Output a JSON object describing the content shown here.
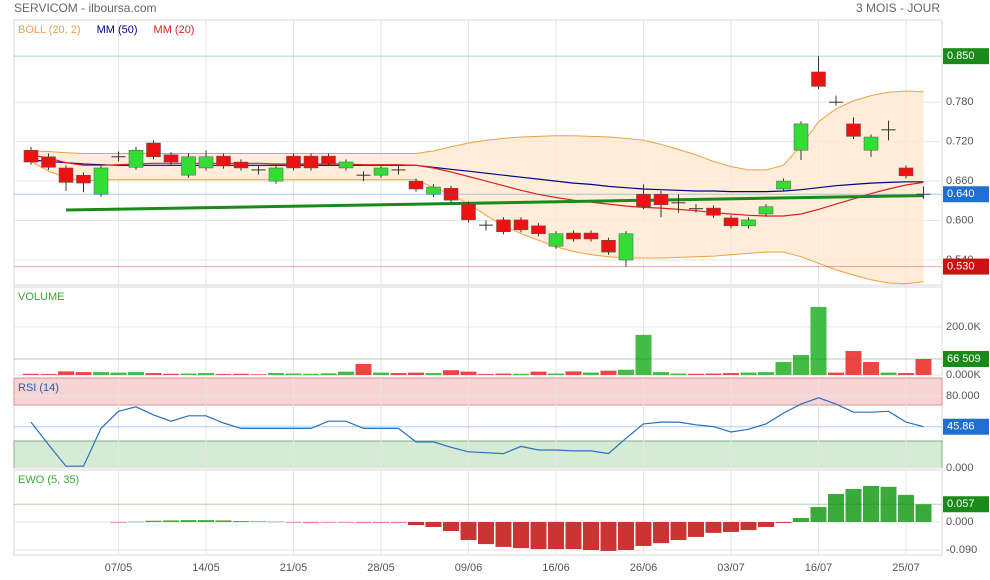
{
  "header": {
    "title": "SERVICOM - ilboursa.com",
    "period": "3 MOIS - JOUR"
  },
  "chart_data": [
    {
      "type": "candlestick",
      "categories": [
        null,
        null,
        null,
        null,
        null,
        "07/05",
        null,
        null,
        null,
        null,
        "14/05",
        null,
        null,
        null,
        null,
        "21/05",
        null,
        null,
        null,
        null,
        "28/05",
        null,
        null,
        null,
        null,
        "09/06",
        null,
        null,
        null,
        null,
        "16/06",
        null,
        null,
        null,
        null,
        "26/06",
        null,
        null,
        null,
        null,
        "03/07",
        null,
        null,
        null,
        null,
        "16/07",
        null,
        null,
        null,
        null,
        "25/07",
        null
      ],
      "open": [
        0.707,
        0.697,
        0.68,
        0.669,
        0.64,
        0.697,
        0.681,
        0.718,
        0.7,
        0.669,
        0.68,
        0.698,
        0.689,
        0.677,
        0.66,
        0.698,
        0.698,
        0.698,
        0.68,
        0.669,
        0.669,
        0.677,
        0.66,
        0.64,
        0.649,
        0.625,
        0.593,
        0.601,
        0.601,
        0.592,
        0.561,
        0.581,
        0.581,
        0.57,
        0.54,
        0.64,
        0.64,
        0.627,
        0.618,
        0.619,
        0.604,
        0.592,
        0.61,
        0.648,
        0.707,
        0.826,
        0.78,
        0.747,
        0.707,
        0.738,
        0.68,
        0.64
      ],
      "high": [
        0.712,
        0.702,
        0.684,
        0.673,
        0.684,
        0.705,
        0.712,
        0.722,
        0.704,
        0.702,
        0.707,
        0.702,
        0.693,
        0.683,
        0.684,
        0.702,
        0.702,
        0.702,
        0.693,
        0.675,
        0.684,
        0.683,
        0.664,
        0.655,
        0.653,
        0.629,
        0.6,
        0.605,
        0.605,
        0.596,
        0.584,
        0.585,
        0.585,
        0.574,
        0.584,
        0.655,
        0.645,
        0.64,
        0.625,
        0.623,
        0.608,
        0.605,
        0.625,
        0.664,
        0.751,
        0.85,
        0.79,
        0.757,
        0.731,
        0.752,
        0.684,
        0.652
      ],
      "low": [
        0.685,
        0.677,
        0.645,
        0.643,
        0.636,
        0.69,
        0.677,
        0.693,
        0.685,
        0.665,
        0.676,
        0.679,
        0.676,
        0.67,
        0.656,
        0.676,
        0.676,
        0.683,
        0.676,
        0.66,
        0.665,
        0.67,
        0.644,
        0.636,
        0.627,
        0.597,
        0.585,
        0.579,
        0.582,
        0.576,
        0.557,
        0.568,
        0.568,
        0.548,
        0.53,
        0.617,
        0.605,
        0.612,
        0.612,
        0.604,
        0.588,
        0.588,
        0.606,
        0.644,
        0.692,
        0.8,
        0.775,
        0.724,
        0.697,
        0.722,
        0.664,
        0.633
      ],
      "close": [
        0.689,
        0.681,
        0.658,
        0.657,
        0.68,
        0.697,
        0.707,
        0.697,
        0.689,
        0.697,
        0.697,
        0.683,
        0.68,
        0.677,
        0.68,
        0.68,
        0.68,
        0.687,
        0.689,
        0.669,
        0.68,
        0.677,
        0.648,
        0.651,
        0.631,
        0.601,
        0.593,
        0.583,
        0.586,
        0.58,
        0.58,
        0.572,
        0.572,
        0.552,
        0.58,
        0.621,
        0.624,
        0.627,
        0.618,
        0.608,
        0.592,
        0.601,
        0.621,
        0.66,
        0.747,
        0.804,
        0.78,
        0.728,
        0.727,
        0.738,
        0.668,
        0.64
      ],
      "up_color": "#33dd33",
      "down_color": "#ee1111",
      "overlays": [
        {
          "name": "BOLL (20, 2)",
          "color": "#f0a040",
          "fill": "#fce8d0",
          "upper": [
            0.706,
            0.705,
            0.703,
            0.702,
            0.702,
            0.702,
            0.702,
            0.702,
            0.702,
            0.702,
            0.702,
            0.702,
            0.702,
            0.702,
            0.702,
            0.702,
            0.702,
            0.702,
            0.702,
            0.702,
            0.702,
            0.702,
            0.702,
            0.706,
            0.712,
            0.718,
            0.722,
            0.725,
            0.727,
            0.728,
            0.729,
            0.729,
            0.728,
            0.727,
            0.725,
            0.722,
            0.716,
            0.708,
            0.7,
            0.69,
            0.682,
            0.677,
            0.677,
            0.684,
            0.714,
            0.75,
            0.77,
            0.782,
            0.79,
            0.795,
            0.797,
            0.796
          ],
          "lower": [
            0.69,
            0.675,
            0.665,
            0.66,
            0.662,
            0.662,
            0.662,
            0.662,
            0.662,
            0.662,
            0.662,
            0.662,
            0.662,
            0.662,
            0.662,
            0.662,
            0.662,
            0.662,
            0.662,
            0.662,
            0.662,
            0.662,
            0.662,
            0.65,
            0.64,
            0.625,
            0.608,
            0.592,
            0.58,
            0.57,
            0.56,
            0.553,
            0.548,
            0.545,
            0.543,
            0.543,
            0.543,
            0.544,
            0.545,
            0.546,
            0.548,
            0.55,
            0.552,
            0.552,
            0.545,
            0.535,
            0.525,
            0.517,
            0.51,
            0.505,
            0.504,
            0.507
          ]
        },
        {
          "name": "MM (50)",
          "color": "#00008b",
          "values": [
            0.692,
            0.69,
            0.688,
            0.686,
            0.685,
            0.684,
            0.684,
            0.684,
            0.684,
            0.684,
            0.684,
            0.684,
            0.684,
            0.684,
            0.684,
            0.684,
            0.684,
            0.684,
            0.684,
            0.684,
            0.684,
            0.684,
            0.684,
            0.681,
            0.678,
            0.675,
            0.672,
            0.669,
            0.666,
            0.663,
            0.66,
            0.657,
            0.655,
            0.652,
            0.65,
            0.648,
            0.647,
            0.646,
            0.645,
            0.645,
            0.644,
            0.644,
            0.644,
            0.645,
            0.647,
            0.65,
            0.653,
            0.655,
            0.657,
            0.658,
            0.659,
            0.659
          ]
        },
        {
          "name": "MM (20)",
          "color": "#e02020",
          "values": [
            0.7,
            0.695,
            0.688,
            0.684,
            0.684,
            0.685,
            0.686,
            0.687,
            0.687,
            0.687,
            0.687,
            0.687,
            0.687,
            0.687,
            0.686,
            0.686,
            0.686,
            0.686,
            0.686,
            0.685,
            0.685,
            0.685,
            0.684,
            0.68,
            0.674,
            0.667,
            0.66,
            0.653,
            0.646,
            0.64,
            0.635,
            0.631,
            0.628,
            0.625,
            0.622,
            0.62,
            0.619,
            0.617,
            0.615,
            0.612,
            0.61,
            0.608,
            0.607,
            0.607,
            0.61,
            0.617,
            0.625,
            0.633,
            0.641,
            0.648,
            0.654,
            0.658
          ]
        }
      ],
      "trendline": {
        "color": "#1a8a1a",
        "x": [
          2,
          51
        ],
        "values": [
          0.616,
          0.638
        ]
      },
      "ylim": [
        0.502,
        0.905
      ],
      "yticks": [
        {
          "value": 0.54,
          "label": "0.540"
        },
        {
          "value": 0.6,
          "label": "0.600"
        },
        {
          "value": 0.66,
          "label": "0.660"
        },
        {
          "value": 0.72,
          "label": "0.720"
        },
        {
          "value": 0.78,
          "label": "0.780"
        }
      ],
      "markers": [
        {
          "value": 0.85,
          "label": "0.850",
          "color": "#1a8a1a"
        },
        {
          "value": 0.64,
          "label": "0.640",
          "color": "#1e6fd0"
        },
        {
          "value": 0.53,
          "label": "0.530",
          "color": "#cc1111"
        }
      ],
      "grid": true
    },
    {
      "type": "bar",
      "title": "VOLUME",
      "title_color": "#33aa33",
      "values": [
        5000,
        4000,
        15000,
        12000,
        12000,
        10000,
        12000,
        8000,
        5000,
        6000,
        8000,
        4000,
        5000,
        3000,
        8000,
        6000,
        5000,
        7000,
        14000,
        46000,
        10000,
        8000,
        10000,
        8000,
        20000,
        14000,
        4000,
        6000,
        5000,
        14000,
        6000,
        15000,
        10000,
        18000,
        22000,
        167000,
        12000,
        6000,
        5000,
        6000,
        8000,
        10000,
        12000,
        54000,
        83000,
        283000,
        10000,
        100000,
        54000,
        10000,
        8000,
        66509
      ],
      "up_color": "#44bb44",
      "down_color": "#ee4444",
      "ylim": [
        0,
        366000
      ],
      "yticks": [
        {
          "value": 0,
          "label": "0.000K"
        },
        {
          "value": 200000,
          "label": "200.0K"
        }
      ],
      "markers": [
        {
          "value": 66509,
          "label": "66 509",
          "color": "#1a8a1a"
        }
      ]
    },
    {
      "type": "line",
      "title": "RSI (14)",
      "title_color": "#1e5fb0",
      "color": "#2a6fc0",
      "values": [
        51,
        26,
        2,
        2,
        44,
        63,
        68,
        59,
        52,
        58,
        58,
        50,
        44,
        44,
        44,
        44,
        44,
        52,
        52,
        44,
        44,
        44,
        29,
        29,
        23,
        18,
        17,
        16,
        24,
        20,
        20,
        19,
        19,
        16,
        33,
        49,
        51,
        51,
        48,
        46,
        40,
        43,
        49,
        61,
        71,
        78,
        71,
        62,
        62,
        63,
        51,
        45.86
      ],
      "bands": [
        {
          "from": 70,
          "to": 100,
          "color": "#f8d4d4",
          "edge": "#d89090"
        },
        {
          "from": 0,
          "to": 30,
          "color": "#d6ebd6",
          "edge": "#80b080"
        }
      ],
      "ylim": [
        0,
        100
      ],
      "yticks": [
        {
          "value": 0,
          "label": "0.000"
        },
        {
          "value": 80,
          "label": "80.000"
        }
      ],
      "markers": [
        {
          "value": 45.86,
          "label": "45.86",
          "color": "#1e6fd0"
        }
      ]
    },
    {
      "type": "bar",
      "title": "EWO (5, 35)",
      "title_color": "#33aa33",
      "values": [
        null,
        null,
        null,
        null,
        null,
        -0.001,
        0.001,
        0.004,
        0.005,
        0.006,
        0.006,
        0.005,
        0.003,
        0.002,
        0.001,
        -0.001,
        -0.002,
        -0.001,
        -0.001,
        -0.002,
        -0.002,
        -0.002,
        -0.01,
        -0.016,
        -0.029,
        -0.058,
        -0.071,
        -0.08,
        -0.084,
        -0.087,
        -0.087,
        -0.087,
        -0.09,
        -0.093,
        -0.09,
        -0.077,
        -0.068,
        -0.058,
        -0.048,
        -0.035,
        -0.032,
        -0.026,
        -0.016,
        -0.003,
        0.013,
        0.048,
        0.09,
        0.106,
        0.116,
        0.113,
        0.087,
        0.057
      ],
      "up_color": "#3aaa3a",
      "down_color": "#cc3333",
      "ylim": [
        -0.106,
        0.167
      ],
      "yticks": [
        {
          "value": -0.09,
          "label": "-0.090"
        },
        {
          "value": 0,
          "label": "0.000"
        }
      ],
      "markers": [
        {
          "value": 0.057,
          "label": "0.057",
          "color": "#1a8a1a"
        }
      ]
    }
  ]
}
